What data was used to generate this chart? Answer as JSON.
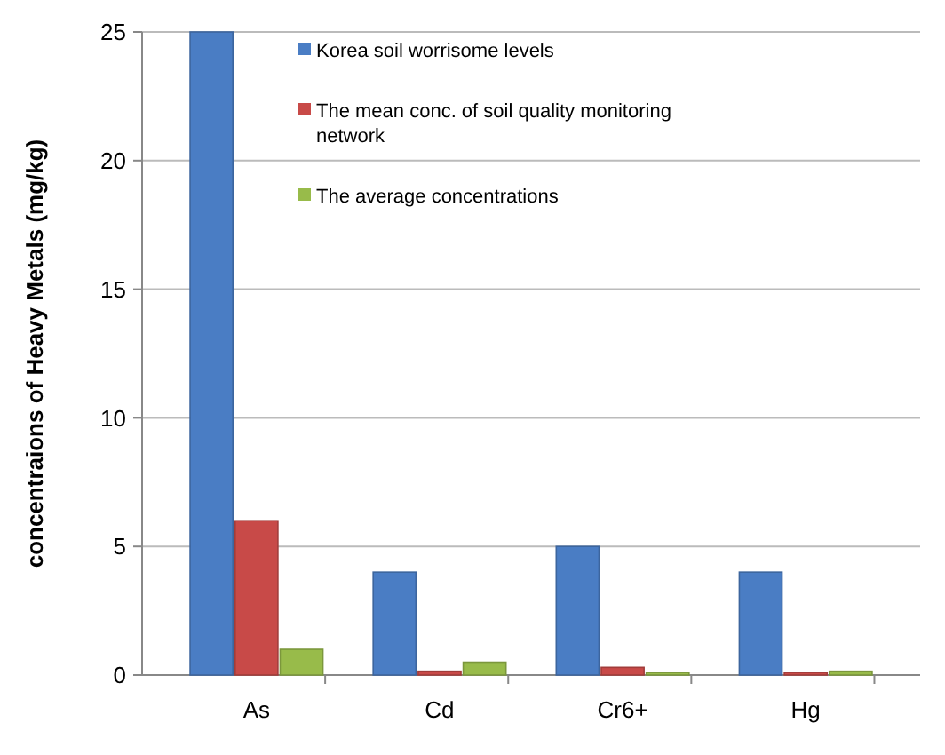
{
  "chart_data": {
    "type": "bar",
    "ylabel": "concentraions of Heavy Metals (mg/kg)",
    "categories": [
      "As",
      "Cd",
      "Cr6+",
      "Hg"
    ],
    "series": [
      {
        "name": "Korea soil worrisome levels",
        "color": "#4a7dc4",
        "values": [
          25,
          4,
          5,
          4
        ]
      },
      {
        "name": "The mean conc. of soil quality monitoring network",
        "color": "#c84a48",
        "values": [
          6,
          0.15,
          0.3,
          0.1
        ]
      },
      {
        "name": "The average concentrations",
        "color": "#98bb4a",
        "values": [
          1,
          0.5,
          0.1,
          0.15
        ]
      }
    ],
    "ylim": [
      0,
      25
    ],
    "yticks": [
      0,
      5,
      10,
      15,
      20,
      25
    ],
    "grid": "y",
    "legend": "top"
  }
}
